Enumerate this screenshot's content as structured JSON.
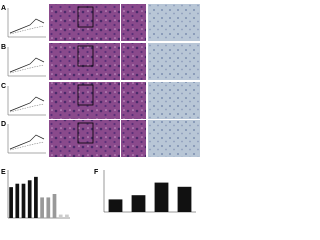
{
  "panels": [
    "A",
    "B",
    "C",
    "D",
    "E",
    "F"
  ],
  "chart_e": {
    "type": "bar",
    "values": [
      9,
      10,
      10,
      11,
      12,
      6,
      6,
      7,
      1,
      1
    ],
    "colors": [
      "#111",
      "#111",
      "#111",
      "#111",
      "#111",
      "#999",
      "#999",
      "#999",
      "#ccc",
      "#ccc"
    ],
    "ylim": [
      0,
      14
    ]
  },
  "chart_f": {
    "type": "bar",
    "values": [
      3,
      4,
      7,
      6
    ],
    "color": "#111",
    "ylim": [
      0,
      10
    ]
  }
}
